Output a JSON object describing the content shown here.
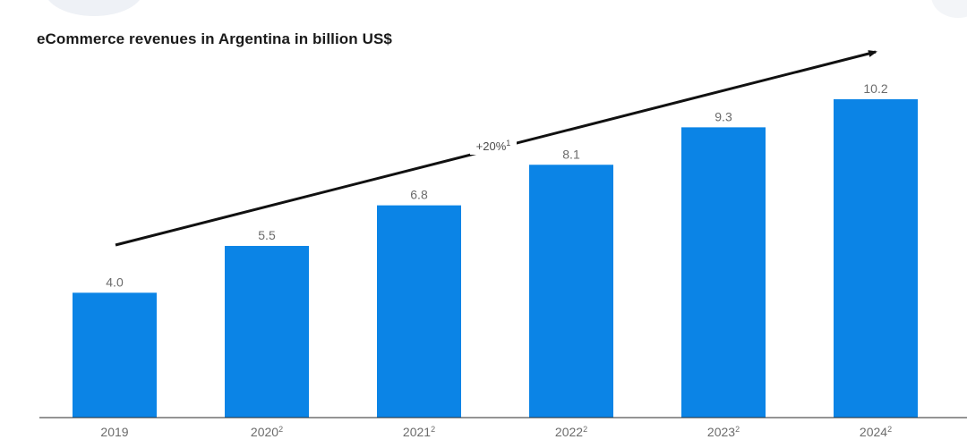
{
  "chart_data": {
    "type": "bar",
    "title": "eCommerce revenues in Argentina in billion US$",
    "categories": [
      "2019",
      "2020",
      "2021",
      "2022",
      "2023",
      "2024"
    ],
    "category_footnotes": [
      "",
      "2",
      "2",
      "2",
      "2",
      "2"
    ],
    "values": [
      4.0,
      5.5,
      6.8,
      8.1,
      9.3,
      10.2
    ],
    "value_labels": [
      "4.0",
      "5.5",
      "6.8",
      "8.1",
      "9.3",
      "10.2"
    ],
    "ylim": [
      0,
      10.6
    ],
    "xlabel": "",
    "ylabel": "",
    "grid": false,
    "bar_color": "#0b84e6",
    "trend_annotation": {
      "label": "+20%",
      "footnote": "1"
    }
  }
}
